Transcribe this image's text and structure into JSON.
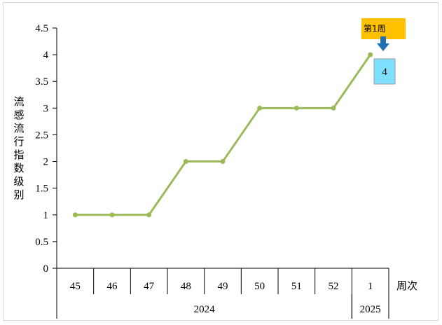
{
  "chart_data": {
    "type": "line",
    "title": "",
    "ylabel": "流感流行指数级别",
    "xlabel": "周次",
    "ylim": [
      0,
      4.5
    ],
    "ytick_step": 0.5,
    "yticks": [
      "0",
      "0.5",
      "1",
      "1.5",
      "2",
      "2.5",
      "3",
      "3.5",
      "4",
      "4.5"
    ],
    "categories": [
      "45",
      "46",
      "47",
      "48",
      "49",
      "50",
      "51",
      "52",
      "1"
    ],
    "year_groups": [
      {
        "label": "2024",
        "start": 0,
        "end": 7
      },
      {
        "label": "2025",
        "start": 8,
        "end": 8
      }
    ],
    "series": [
      {
        "values": [
          1,
          1,
          1,
          2,
          2,
          3,
          3,
          3,
          4
        ],
        "color": "#9bbb59"
      }
    ],
    "annotation": {
      "label": "第1周",
      "value": "4",
      "point_index": 8,
      "label_color": "#ffc000",
      "value_box_color": "#7fe0ff",
      "arrow_color": "#1f6fb5"
    },
    "grid": false,
    "legend": "none"
  }
}
